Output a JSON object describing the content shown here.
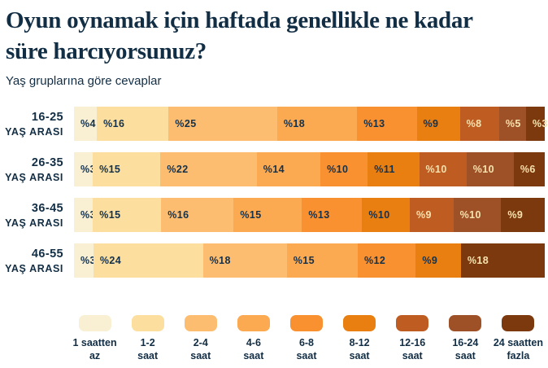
{
  "title": "Oyun oynamak için haftada genellikle ne kadar süre harcıyorsunuz?",
  "subtitle": "Yaş gruplarına göre cevaplar",
  "colors": {
    "background": "#ffffff",
    "text": "#122e45",
    "segment_label_dark": "#14314b",
    "segment_label_light": "#f6e2ae"
  },
  "chart_data": {
    "type": "bar",
    "stacked": true,
    "orientation": "horizontal",
    "value_prefix": "%",
    "categories": [
      "1 saatten az",
      "1-2 saat",
      "2-4 saat",
      "4-6 saat",
      "6-8 saat",
      "8-12 saat",
      "12-16 saat",
      "16-24 saat",
      "24 saatten fazla"
    ],
    "category_colors": [
      "#f9efd3",
      "#fcdf9e",
      "#fcbd71",
      "#fbaa52",
      "#f99130",
      "#e97f10",
      "#bf5c22",
      "#9e5126",
      "#7d390e"
    ],
    "category_dark_text": [
      true,
      true,
      true,
      true,
      true,
      true,
      false,
      false,
      false
    ],
    "rows": [
      {
        "label": "16-25",
        "label_suffix": "YAŞ ARASI",
        "values": [
          4,
          16,
          25,
          18,
          13,
          9,
          8,
          5,
          3
        ]
      },
      {
        "label": "26-35",
        "label_suffix": "YAŞ ARASI",
        "values": [
          3,
          15,
          22,
          14,
          10,
          11,
          10,
          10,
          6
        ]
      },
      {
        "label": "36-45",
        "label_suffix": "YAŞ ARASI",
        "values": [
          3,
          15,
          16,
          15,
          13,
          10,
          9,
          10,
          9
        ]
      },
      {
        "label": "46-55",
        "label_suffix": "YAŞ ARASI",
        "values": [
          3,
          24,
          18,
          15,
          12,
          9,
          0,
          0,
          18
        ]
      }
    ]
  },
  "legend": {
    "items": [
      {
        "line1": "1 saatten",
        "line2": "az"
      },
      {
        "line1": "1-2",
        "line2": "saat"
      },
      {
        "line1": "2-4",
        "line2": "saat"
      },
      {
        "line1": "4-6",
        "line2": "saat"
      },
      {
        "line1": "6-8",
        "line2": "saat"
      },
      {
        "line1": "8-12",
        "line2": "saat"
      },
      {
        "line1": "12-16",
        "line2": "saat"
      },
      {
        "line1": "16-24",
        "line2": "saat"
      },
      {
        "line1": "24 saatten",
        "line2": "fazla"
      }
    ]
  }
}
